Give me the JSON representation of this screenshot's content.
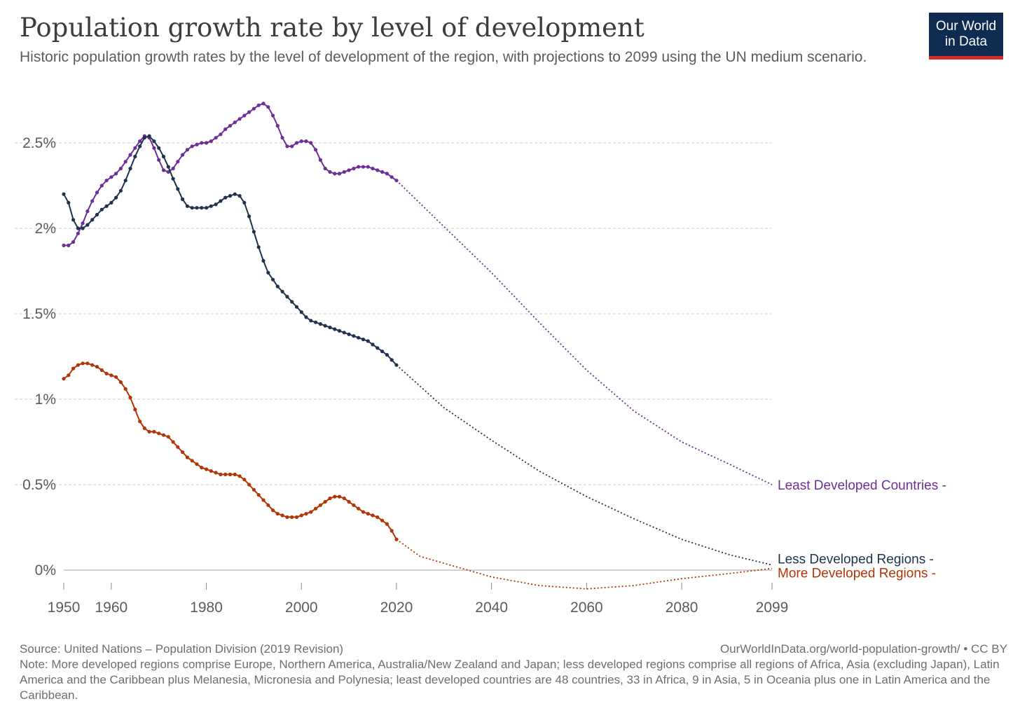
{
  "title": "Population growth rate by level of development",
  "subtitle": "Historic population growth rates by the level of development of the region, with projections to 2099 using the UN medium scenario.",
  "logo": {
    "line1": "Our World",
    "line2": "in Data"
  },
  "footer": {
    "source": "Source: United Nations – Population Division (2019 Revision)",
    "url": "OurWorldInData.org/world-population-growth/ • CC BY",
    "note": "Note: More developed regions comprise Europe, Northern America, Australia/New Zealand and Japan; less developed regions comprise all regions of Africa, Asia (excluding Japan), Latin America and the Caribbean plus Melanesia, Micronesia and Polynesia; least developed countries are 48 countries, 33 in Africa, 9 in Asia, 5 in Oceania plus one in Latin America and the Caribbean."
  },
  "chart_data": {
    "type": "line",
    "xlim": [
      1950,
      2099
    ],
    "ylim": [
      -0.1,
      2.75
    ],
    "yticks": [
      0,
      0.5,
      1,
      1.5,
      2,
      2.5
    ],
    "ytick_labels": [
      "0%",
      "0.5%",
      "1%",
      "1.5%",
      "2%",
      "2.5%"
    ],
    "xticks": [
      1950,
      1960,
      1980,
      2000,
      2020,
      2040,
      2060,
      2080,
      2099
    ],
    "xtick_labels": [
      "1950",
      "1960",
      "1980",
      "2000",
      "2020",
      "2040",
      "2060",
      "2080",
      "2099"
    ],
    "grid": "horizontal dashed",
    "historic_end": 2020,
    "series": [
      {
        "name": "Least Developed Countries",
        "label": "Least Developed Countries -",
        "color": "#6d2f96",
        "points": [
          [
            1950,
            1.9
          ],
          [
            1951,
            1.9
          ],
          [
            1952,
            1.92
          ],
          [
            1953,
            1.97
          ],
          [
            1954,
            2.03
          ],
          [
            1955,
            2.1
          ],
          [
            1956,
            2.16
          ],
          [
            1957,
            2.21
          ],
          [
            1958,
            2.25
          ],
          [
            1959,
            2.28
          ],
          [
            1960,
            2.3
          ],
          [
            1961,
            2.32
          ],
          [
            1962,
            2.35
          ],
          [
            1963,
            2.39
          ],
          [
            1964,
            2.43
          ],
          [
            1965,
            2.47
          ],
          [
            1966,
            2.51
          ],
          [
            1967,
            2.54
          ],
          [
            1968,
            2.53
          ],
          [
            1969,
            2.47
          ],
          [
            1970,
            2.4
          ],
          [
            1971,
            2.34
          ],
          [
            1972,
            2.33
          ],
          [
            1973,
            2.35
          ],
          [
            1974,
            2.39
          ],
          [
            1975,
            2.43
          ],
          [
            1976,
            2.46
          ],
          [
            1977,
            2.48
          ],
          [
            1978,
            2.49
          ],
          [
            1979,
            2.5
          ],
          [
            1980,
            2.5
          ],
          [
            1981,
            2.51
          ],
          [
            1982,
            2.53
          ],
          [
            1983,
            2.55
          ],
          [
            1984,
            2.58
          ],
          [
            1985,
            2.6
          ],
          [
            1986,
            2.62
          ],
          [
            1987,
            2.64
          ],
          [
            1988,
            2.66
          ],
          [
            1989,
            2.68
          ],
          [
            1990,
            2.7
          ],
          [
            1991,
            2.72
          ],
          [
            1992,
            2.73
          ],
          [
            1993,
            2.71
          ],
          [
            1994,
            2.66
          ],
          [
            1995,
            2.6
          ],
          [
            1996,
            2.53
          ],
          [
            1997,
            2.48
          ],
          [
            1998,
            2.48
          ],
          [
            1999,
            2.5
          ],
          [
            2000,
            2.51
          ],
          [
            2001,
            2.51
          ],
          [
            2002,
            2.5
          ],
          [
            2003,
            2.46
          ],
          [
            2004,
            2.4
          ],
          [
            2005,
            2.35
          ],
          [
            2006,
            2.33
          ],
          [
            2007,
            2.32
          ],
          [
            2008,
            2.32
          ],
          [
            2009,
            2.33
          ],
          [
            2010,
            2.34
          ],
          [
            2011,
            2.35
          ],
          [
            2012,
            2.36
          ],
          [
            2013,
            2.36
          ],
          [
            2014,
            2.36
          ],
          [
            2015,
            2.35
          ],
          [
            2016,
            2.34
          ],
          [
            2017,
            2.33
          ],
          [
            2018,
            2.32
          ],
          [
            2019,
            2.3
          ],
          [
            2020,
            2.28
          ],
          [
            2030,
            2.01
          ],
          [
            2040,
            1.74
          ],
          [
            2050,
            1.45
          ],
          [
            2060,
            1.17
          ],
          [
            2070,
            0.93
          ],
          [
            2080,
            0.75
          ],
          [
            2090,
            0.62
          ],
          [
            2099,
            0.5
          ]
        ]
      },
      {
        "name": "Less Developed Regions",
        "label": "Less Developed Regions -",
        "color": "#20324d",
        "points": [
          [
            1950,
            2.2
          ],
          [
            1951,
            2.15
          ],
          [
            1952,
            2.05
          ],
          [
            1953,
            2.0
          ],
          [
            1954,
            2.0
          ],
          [
            1955,
            2.02
          ],
          [
            1956,
            2.05
          ],
          [
            1957,
            2.08
          ],
          [
            1958,
            2.11
          ],
          [
            1959,
            2.13
          ],
          [
            1960,
            2.15
          ],
          [
            1961,
            2.18
          ],
          [
            1962,
            2.22
          ],
          [
            1963,
            2.28
          ],
          [
            1964,
            2.35
          ],
          [
            1965,
            2.42
          ],
          [
            1966,
            2.48
          ],
          [
            1967,
            2.53
          ],
          [
            1968,
            2.54
          ],
          [
            1969,
            2.51
          ],
          [
            1970,
            2.47
          ],
          [
            1971,
            2.42
          ],
          [
            1972,
            2.36
          ],
          [
            1973,
            2.29
          ],
          [
            1974,
            2.23
          ],
          [
            1975,
            2.17
          ],
          [
            1976,
            2.13
          ],
          [
            1977,
            2.12
          ],
          [
            1978,
            2.12
          ],
          [
            1979,
            2.12
          ],
          [
            1980,
            2.12
          ],
          [
            1981,
            2.13
          ],
          [
            1982,
            2.14
          ],
          [
            1983,
            2.16
          ],
          [
            1984,
            2.18
          ],
          [
            1985,
            2.19
          ],
          [
            1986,
            2.2
          ],
          [
            1987,
            2.19
          ],
          [
            1988,
            2.15
          ],
          [
            1989,
            2.07
          ],
          [
            1990,
            1.98
          ],
          [
            1991,
            1.89
          ],
          [
            1992,
            1.81
          ],
          [
            1993,
            1.74
          ],
          [
            1994,
            1.7
          ],
          [
            1995,
            1.66
          ],
          [
            1996,
            1.63
          ],
          [
            1997,
            1.6
          ],
          [
            1998,
            1.57
          ],
          [
            1999,
            1.54
          ],
          [
            2000,
            1.51
          ],
          [
            2001,
            1.48
          ],
          [
            2002,
            1.46
          ],
          [
            2003,
            1.45
          ],
          [
            2004,
            1.44
          ],
          [
            2005,
            1.43
          ],
          [
            2006,
            1.42
          ],
          [
            2007,
            1.41
          ],
          [
            2008,
            1.4
          ],
          [
            2009,
            1.39
          ],
          [
            2010,
            1.38
          ],
          [
            2011,
            1.37
          ],
          [
            2012,
            1.36
          ],
          [
            2013,
            1.35
          ],
          [
            2014,
            1.34
          ],
          [
            2015,
            1.32
          ],
          [
            2016,
            1.3
          ],
          [
            2017,
            1.28
          ],
          [
            2018,
            1.26
          ],
          [
            2019,
            1.23
          ],
          [
            2020,
            1.2
          ],
          [
            2030,
            0.95
          ],
          [
            2040,
            0.76
          ],
          [
            2050,
            0.58
          ],
          [
            2060,
            0.43
          ],
          [
            2070,
            0.3
          ],
          [
            2080,
            0.18
          ],
          [
            2090,
            0.09
          ],
          [
            2099,
            0.03
          ]
        ]
      },
      {
        "name": "More Developed Regions",
        "label": "More Developed Regions -",
        "color": "#b13507",
        "points": [
          [
            1950,
            1.12
          ],
          [
            1951,
            1.14
          ],
          [
            1952,
            1.18
          ],
          [
            1953,
            1.2
          ],
          [
            1954,
            1.21
          ],
          [
            1955,
            1.21
          ],
          [
            1956,
            1.2
          ],
          [
            1957,
            1.19
          ],
          [
            1958,
            1.17
          ],
          [
            1959,
            1.15
          ],
          [
            1960,
            1.14
          ],
          [
            1961,
            1.13
          ],
          [
            1962,
            1.1
          ],
          [
            1963,
            1.06
          ],
          [
            1964,
            1.01
          ],
          [
            1965,
            0.94
          ],
          [
            1966,
            0.87
          ],
          [
            1967,
            0.83
          ],
          [
            1968,
            0.81
          ],
          [
            1969,
            0.81
          ],
          [
            1970,
            0.8
          ],
          [
            1971,
            0.79
          ],
          [
            1972,
            0.78
          ],
          [
            1973,
            0.75
          ],
          [
            1974,
            0.72
          ],
          [
            1975,
            0.69
          ],
          [
            1976,
            0.66
          ],
          [
            1977,
            0.64
          ],
          [
            1978,
            0.62
          ],
          [
            1979,
            0.6
          ],
          [
            1980,
            0.59
          ],
          [
            1981,
            0.58
          ],
          [
            1982,
            0.57
          ],
          [
            1983,
            0.56
          ],
          [
            1984,
            0.56
          ],
          [
            1985,
            0.56
          ],
          [
            1986,
            0.56
          ],
          [
            1987,
            0.55
          ],
          [
            1988,
            0.53
          ],
          [
            1989,
            0.5
          ],
          [
            1990,
            0.47
          ],
          [
            1991,
            0.44
          ],
          [
            1992,
            0.41
          ],
          [
            1993,
            0.38
          ],
          [
            1994,
            0.35
          ],
          [
            1995,
            0.33
          ],
          [
            1996,
            0.32
          ],
          [
            1997,
            0.31
          ],
          [
            1998,
            0.31
          ],
          [
            1999,
            0.31
          ],
          [
            2000,
            0.32
          ],
          [
            2001,
            0.33
          ],
          [
            2002,
            0.34
          ],
          [
            2003,
            0.36
          ],
          [
            2004,
            0.38
          ],
          [
            2005,
            0.4
          ],
          [
            2006,
            0.42
          ],
          [
            2007,
            0.43
          ],
          [
            2008,
            0.43
          ],
          [
            2009,
            0.42
          ],
          [
            2010,
            0.4
          ],
          [
            2011,
            0.38
          ],
          [
            2012,
            0.36
          ],
          [
            2013,
            0.34
          ],
          [
            2014,
            0.33
          ],
          [
            2015,
            0.32
          ],
          [
            2016,
            0.31
          ],
          [
            2017,
            0.29
          ],
          [
            2018,
            0.27
          ],
          [
            2019,
            0.23
          ],
          [
            2020,
            0.18
          ],
          [
            2025,
            0.08
          ],
          [
            2030,
            0.04
          ],
          [
            2040,
            -0.04
          ],
          [
            2050,
            -0.09
          ],
          [
            2060,
            -0.11
          ],
          [
            2070,
            -0.09
          ],
          [
            2080,
            -0.05
          ],
          [
            2090,
            -0.02
          ],
          [
            2099,
            0.01
          ]
        ]
      }
    ]
  }
}
